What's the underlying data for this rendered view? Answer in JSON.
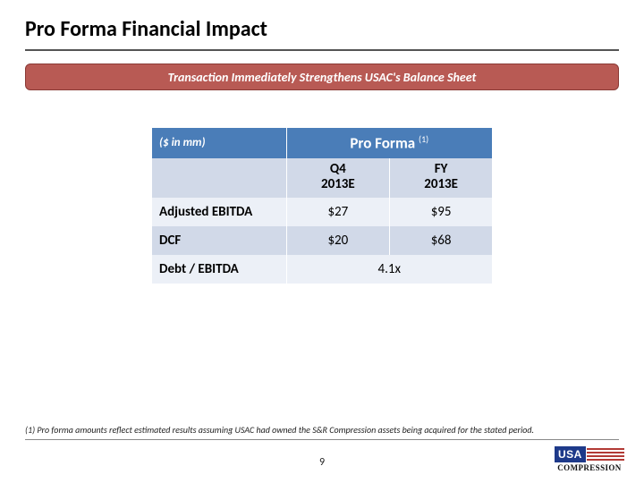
{
  "title": "Pro Forma Financial Impact",
  "banner": {
    "text": "Transaction Immediately Strengthens USAC's Balance Sheet",
    "bg_color": "#b85a54",
    "border_color": "#8a3a36",
    "text_color": "#ffffff"
  },
  "table": {
    "header_bg": "#4a7db8",
    "row_alt1_bg": "#d1d9e8",
    "row_alt2_bg": "#ecf0f7",
    "units_label": "($ in mm)",
    "proforma_label": "Pro Forma",
    "proforma_sup": "(1)",
    "col1_label_line1": "Q4",
    "col1_label_line2": "2013E",
    "col2_label_line1": "FY",
    "col2_label_line2": "2013E",
    "rows": [
      {
        "label": "Adjusted EBITDA",
        "q4": "$27",
        "fy": "$95"
      },
      {
        "label": "DCF",
        "q4": "$20",
        "fy": "$68"
      },
      {
        "label": "Debt / EBITDA",
        "merged": "4.1x"
      }
    ]
  },
  "footnote": "(1) Pro forma amounts reflect estimated results assuming USAC had owned the S&R Compression assets being acquired for the stated period.",
  "page_number": "9",
  "logo": {
    "usa": "USA",
    "compression": "COMPRESSION",
    "blue": "#1e3a8a",
    "red": "#b23a35"
  }
}
